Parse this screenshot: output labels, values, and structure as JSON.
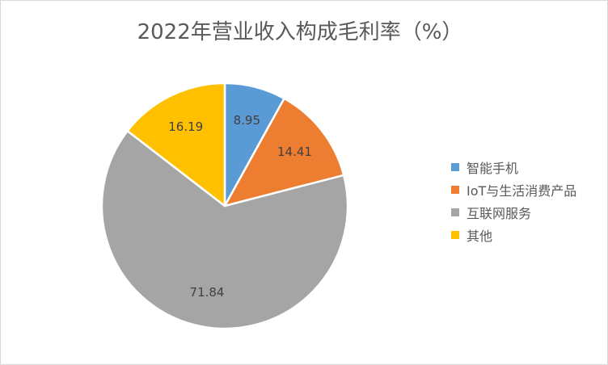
{
  "chart_data": {
    "type": "pie",
    "title": "2022年营业收入构成毛利率（%）",
    "categories": [
      "智能手机",
      "IoT与生活消费产品",
      "互联网服务",
      "其他"
    ],
    "values": [
      8.95,
      14.41,
      71.84,
      16.19
    ],
    "data_labels": [
      "8.95",
      "14.41",
      "71.84",
      "16.19"
    ],
    "colors": [
      "#5B9BD5",
      "#ED7D31",
      "#A5A5A5",
      "#FFC000"
    ],
    "legend_position": "right"
  }
}
